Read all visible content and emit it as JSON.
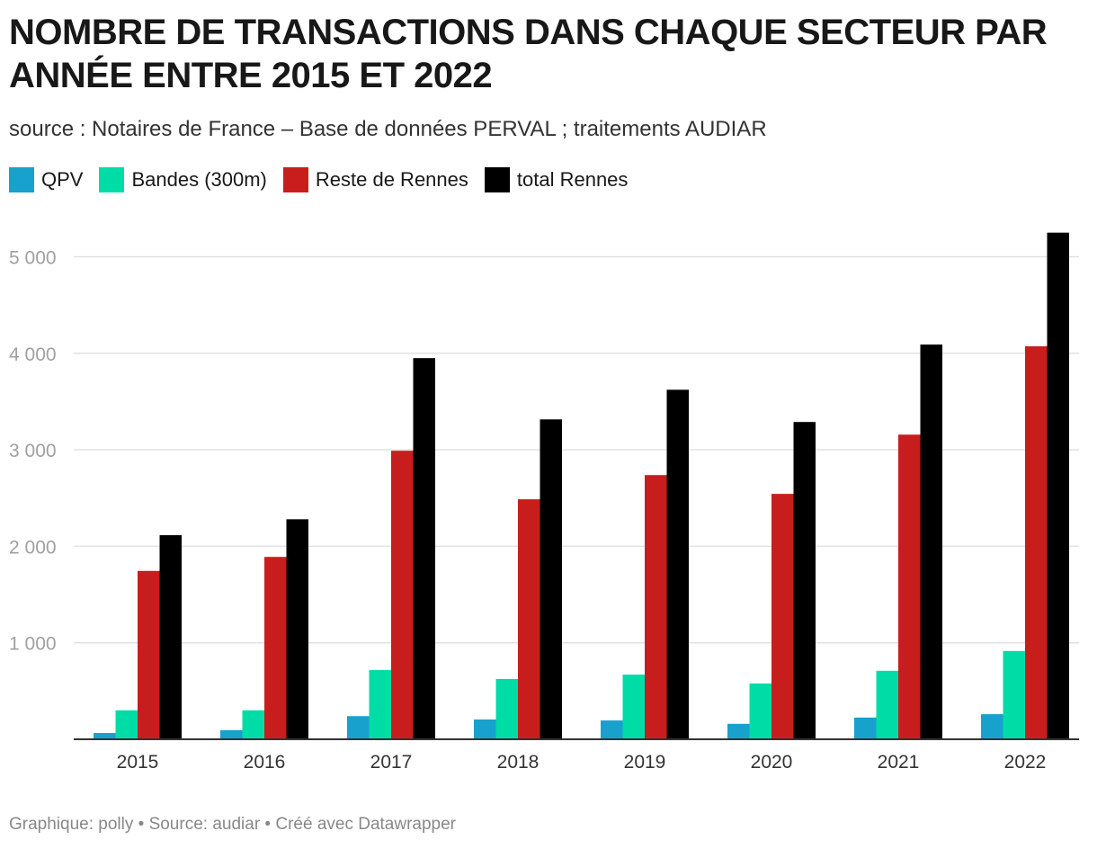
{
  "chart_data": {
    "type": "bar",
    "title": "NOMBRE DE TRANSACTIONS DANS CHAQUE SECTEUR PAR ANNÉE ENTRE 2015 ET 2022",
    "subtitle": "source : Notaires de France – Base de données PERVAL ; traitements AUDIAR",
    "categories": [
      "2015",
      "2016",
      "2017",
      "2018",
      "2019",
      "2020",
      "2021",
      "2022"
    ],
    "series": [
      {
        "name": "QPV",
        "color": "#18a1cd",
        "values": [
          65,
          95,
          240,
          205,
          195,
          160,
          225,
          260
        ]
      },
      {
        "name": "Bandes (300m)",
        "color": "#00dca6",
        "values": [
          300,
          300,
          717,
          625,
          670,
          578,
          710,
          915
        ]
      },
      {
        "name": "Reste de Rennes",
        "color": "#c71e1d",
        "values": [
          1745,
          1890,
          2990,
          2487,
          2738,
          2543,
          3157,
          4072
        ]
      },
      {
        "name": "total Rennes",
        "color": "#000000",
        "values": [
          2115,
          2280,
          3950,
          3315,
          3622,
          3288,
          4090,
          5250
        ]
      }
    ],
    "yticks": [
      "1 000",
      "2 000",
      "3 000",
      "4 000",
      "5 000"
    ],
    "ytick_values": [
      1000,
      2000,
      3000,
      4000,
      5000
    ],
    "ylim": [
      0,
      5400
    ],
    "grid": true,
    "legend": "top-left",
    "footer": "Graphique: polly • Source: audiar • Créé avec Datawrapper"
  }
}
